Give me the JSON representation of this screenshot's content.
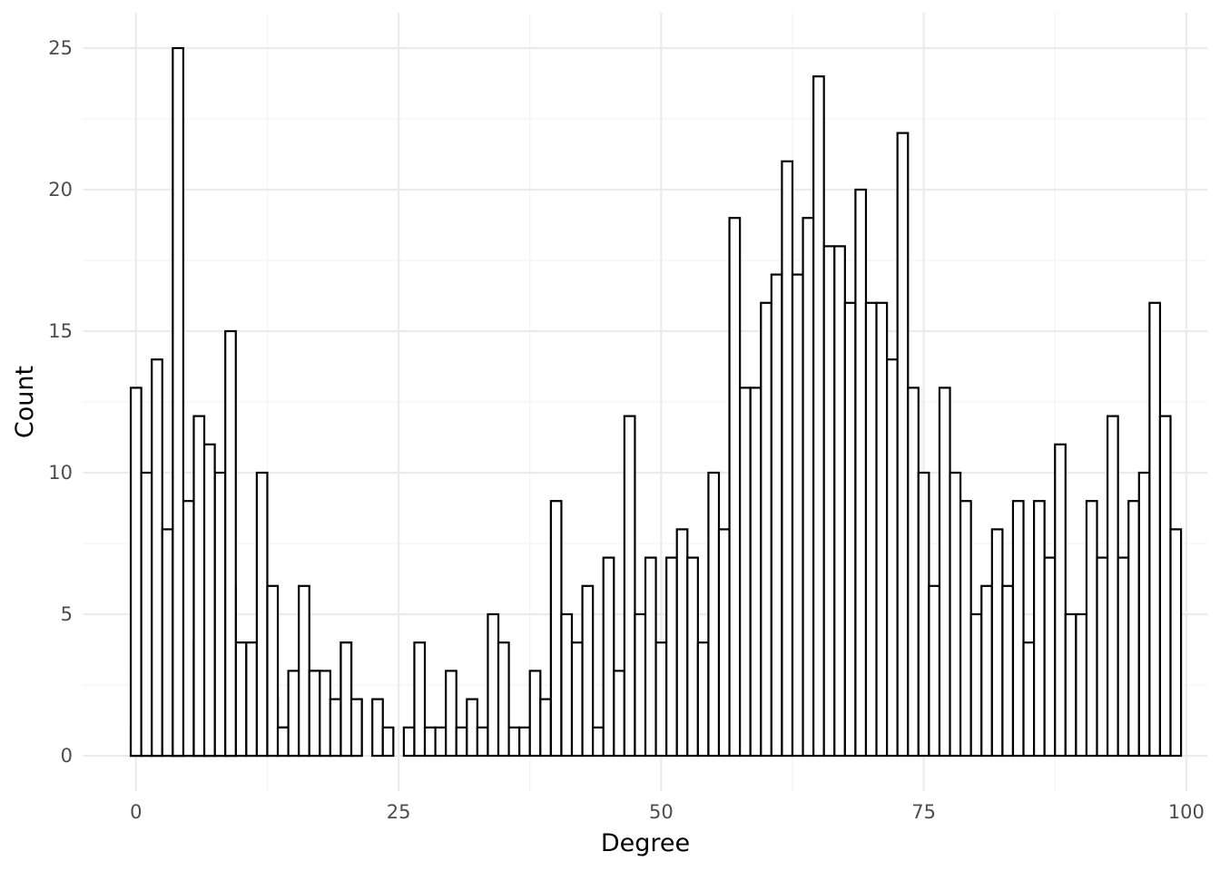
{
  "chart_data": {
    "type": "bar",
    "title": "",
    "xlabel": "Degree",
    "ylabel": "Count",
    "xlim": [
      -5,
      102
    ],
    "ylim": [
      -1.25,
      26.25
    ],
    "x_ticks": [
      0,
      25,
      50,
      75,
      100
    ],
    "y_ticks": [
      0,
      5,
      10,
      15,
      20,
      25
    ],
    "grid": true,
    "legend": "none",
    "bar_fill": "#ffffff",
    "bar_outline": "#000000",
    "series": [
      {
        "x": [
          0,
          1,
          2,
          3,
          4,
          5,
          6,
          7,
          8,
          9
        ],
        "values": [
          1,
          1,
          1,
          1,
          1,
          1,
          1,
          1,
          1,
          2
        ]
      },
      {
        "x": [
          0,
          1,
          2,
          3,
          4,
          5,
          6,
          7,
          8,
          9,
          10,
          11,
          12,
          13,
          14,
          15,
          16,
          17,
          18,
          19,
          20,
          21
        ],
        "values": [
          3,
          2,
          2,
          2,
          5,
          1,
          3,
          4,
          1,
          4,
          4,
          4,
          3,
          2,
          1,
          1,
          2,
          3,
          1,
          2,
          4,
          2
        ]
      },
      {
        "x": [
          0,
          1,
          2,
          3,
          4,
          5,
          6,
          7,
          8,
          9,
          10,
          11,
          12,
          13,
          14,
          15,
          16,
          17,
          18,
          19,
          20,
          21,
          23,
          24,
          26,
          27,
          28,
          29,
          30,
          31,
          32,
          33,
          34,
          35,
          36,
          37,
          38,
          39,
          40,
          41,
          42,
          43,
          44,
          45,
          46,
          47,
          48,
          49,
          50,
          51,
          52,
          53,
          54,
          55,
          56,
          57,
          58,
          59,
          60,
          61,
          62,
          63,
          64,
          65,
          66,
          67,
          68,
          69,
          70,
          71,
          72,
          73,
          74,
          75,
          76,
          77,
          78,
          79,
          80,
          81,
          82,
          83,
          84,
          85,
          86,
          87,
          88,
          89,
          90,
          91,
          92,
          93,
          94,
          95,
          96,
          97,
          98,
          99
        ],
        "values": [
          13,
          10,
          14,
          8,
          7,
          9,
          4,
          6,
          10,
          6,
          4,
          4,
          10,
          6,
          1,
          3,
          6,
          3,
          3,
          2,
          4,
          2,
          2,
          1,
          1,
          4,
          1,
          1,
          3,
          1,
          2,
          1,
          5,
          4,
          1,
          1,
          3,
          2,
          9,
          5,
          4,
          6,
          1,
          7,
          3,
          12,
          5,
          7,
          4,
          7,
          8,
          7,
          4,
          10,
          8,
          19,
          13,
          13,
          16,
          17,
          21,
          17,
          19,
          24,
          18,
          18,
          16,
          20,
          16,
          16,
          14,
          22,
          13,
          10,
          6,
          13,
          10,
          9,
          5,
          6,
          8,
          6,
          9,
          4,
          9,
          7,
          11,
          5,
          5,
          9,
          7,
          12,
          7,
          9,
          10,
          16,
          12,
          8
        ]
      },
      {
        "x": [
          4,
          6,
          7
        ],
        "values": [
          8,
          12,
          11
        ]
      },
      {
        "x": [
          4,
          9
        ],
        "values": [
          25,
          15
        ]
      }
    ]
  }
}
